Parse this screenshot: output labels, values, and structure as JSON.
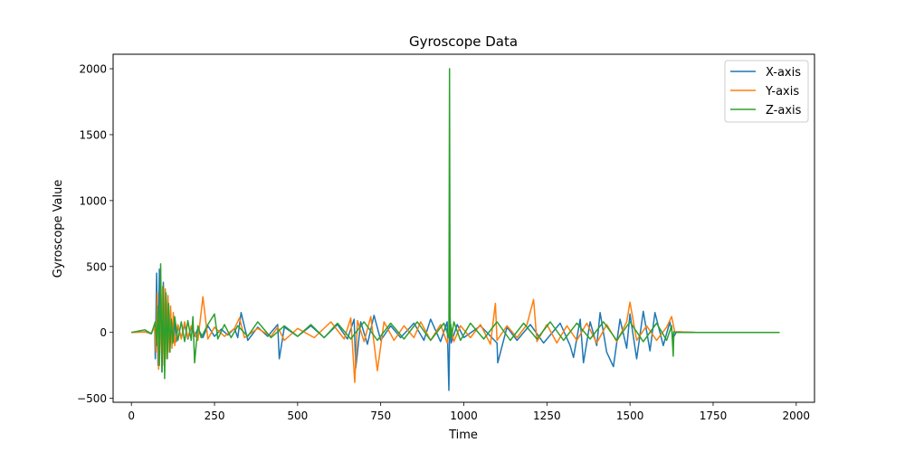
{
  "chart_data": {
    "type": "line",
    "title": "Gyroscope Data",
    "xlabel": "Time",
    "ylabel": "Gyroscope Value",
    "xlim": [
      -55,
      2055
    ],
    "ylim": [
      -530,
      2110
    ],
    "xticks": [
      0,
      250,
      500,
      750,
      1000,
      1250,
      1500,
      1750,
      2000
    ],
    "yticks": [
      -500,
      0,
      500,
      1000,
      1500,
      2000
    ],
    "grid": false,
    "legend_position": "top-right",
    "series": [
      {
        "name": "X-axis",
        "color": "#1f77b4",
        "x": [
          0,
          40,
          60,
          70,
          72,
          76,
          80,
          84,
          88,
          92,
          96,
          100,
          104,
          108,
          112,
          116,
          120,
          125,
          130,
          135,
          140,
          150,
          160,
          170,
          180,
          190,
          200,
          215,
          230,
          250,
          270,
          290,
          310,
          320,
          330,
          350,
          380,
          410,
          440,
          445,
          460,
          500,
          540,
          580,
          620,
          650,
          670,
          675,
          690,
          710,
          730,
          750,
          780,
          810,
          850,
          880,
          900,
          930,
          950,
          955,
          958,
          962,
          980,
          1000,
          1050,
          1100,
          1102,
          1130,
          1160,
          1200,
          1240,
          1290,
          1320,
          1330,
          1350,
          1360,
          1380,
          1400,
          1410,
          1430,
          1450,
          1470,
          1490,
          1500,
          1520,
          1540,
          1560,
          1575,
          1600,
          1620,
          1630,
          1640,
          1700,
          1800,
          1900,
          1950
        ],
        "y": [
          0,
          5,
          -10,
          50,
          -200,
          450,
          -250,
          480,
          100,
          -300,
          380,
          -200,
          250,
          -150,
          120,
          -100,
          80,
          -60,
          90,
          -70,
          50,
          -40,
          60,
          -50,
          40,
          -30,
          30,
          -40,
          50,
          -30,
          25,
          -20,
          30,
          -40,
          150,
          -60,
          40,
          -30,
          60,
          -200,
          40,
          -30,
          50,
          -40,
          60,
          -50,
          100,
          -270,
          80,
          -90,
          130,
          -60,
          50,
          -40,
          70,
          -60,
          100,
          -70,
          80,
          -440,
          150,
          -80,
          60,
          -40,
          50,
          -80,
          -230,
          40,
          -60,
          60,
          -80,
          70,
          -100,
          -190,
          100,
          -230,
          80,
          -100,
          150,
          -150,
          -260,
          100,
          -120,
          140,
          -200,
          160,
          -140,
          150,
          -100,
          80,
          -40,
          5,
          0,
          0,
          0,
          0
        ]
      },
      {
        "name": "Y-axis",
        "color": "#ff7f0e",
        "x": [
          0,
          40,
          60,
          70,
          74,
          78,
          82,
          86,
          90,
          94,
          98,
          102,
          106,
          110,
          114,
          118,
          122,
          126,
          130,
          140,
          150,
          160,
          170,
          180,
          200,
          215,
          230,
          250,
          280,
          310,
          325,
          340,
          380,
          420,
          440,
          460,
          500,
          550,
          600,
          640,
          660,
          672,
          680,
          700,
          720,
          740,
          760,
          790,
          820,
          850,
          870,
          900,
          930,
          950,
          960,
          970,
          990,
          1020,
          1050,
          1080,
          1095,
          1100,
          1130,
          1160,
          1190,
          1210,
          1220,
          1250,
          1280,
          1310,
          1340,
          1370,
          1400,
          1430,
          1460,
          1490,
          1500,
          1520,
          1550,
          1580,
          1610,
          1625,
          1635,
          1645,
          1700,
          1800,
          1900,
          1950
        ],
        "y": [
          0,
          3,
          -5,
          40,
          -150,
          300,
          -280,
          200,
          -150,
          350,
          -250,
          330,
          -200,
          280,
          -150,
          200,
          -120,
          150,
          -100,
          60,
          -50,
          80,
          -40,
          50,
          -60,
          270,
          -50,
          40,
          -30,
          30,
          110,
          -40,
          30,
          -30,
          40,
          -60,
          30,
          -40,
          80,
          -50,
          110,
          -380,
          90,
          -70,
          120,
          -290,
          80,
          -60,
          50,
          -40,
          80,
          -60,
          60,
          -80,
          60,
          -70,
          50,
          -40,
          60,
          -90,
          220,
          -60,
          50,
          -40,
          60,
          250,
          -70,
          60,
          -80,
          50,
          -60,
          70,
          -80,
          60,
          -70,
          80,
          230,
          -60,
          50,
          -60,
          40,
          120,
          0,
          5,
          0,
          0,
          0,
          0
        ]
      },
      {
        "name": "Z-axis",
        "color": "#2ca02c",
        "x": [
          0,
          40,
          60,
          72,
          76,
          80,
          84,
          88,
          92,
          96,
          100,
          104,
          108,
          112,
          116,
          120,
          125,
          130,
          140,
          150,
          160,
          170,
          180,
          185,
          190,
          200,
          210,
          230,
          250,
          260,
          280,
          300,
          320,
          350,
          380,
          420,
          460,
          500,
          540,
          580,
          620,
          660,
          700,
          740,
          780,
          820,
          860,
          900,
          940,
          955,
          957,
          959,
          961,
          963,
          970,
          990,
          1020,
          1060,
          1100,
          1140,
          1180,
          1220,
          1260,
          1300,
          1340,
          1380,
          1420,
          1460,
          1500,
          1540,
          1580,
          1610,
          1625,
          1630,
          1632,
          1640,
          1700,
          1800,
          1900,
          1950
        ],
        "y": [
          0,
          20,
          -10,
          80,
          -100,
          200,
          -250,
          520,
          -300,
          350,
          -350,
          300,
          -200,
          220,
          -150,
          100,
          -80,
          120,
          -60,
          80,
          -70,
          90,
          -60,
          120,
          -230,
          50,
          -40,
          60,
          140,
          -50,
          60,
          -40,
          50,
          -30,
          80,
          -40,
          50,
          -30,
          60,
          -40,
          70,
          -50,
          80,
          -60,
          70,
          -50,
          80,
          -60,
          70,
          -40,
          2000,
          -30,
          60,
          -40,
          80,
          -60,
          70,
          -50,
          80,
          -60,
          70,
          -50,
          80,
          -60,
          70,
          -50,
          80,
          -60,
          80,
          -70,
          70,
          -60,
          50,
          -180,
          5,
          0,
          0,
          0,
          0,
          0
        ]
      }
    ]
  }
}
